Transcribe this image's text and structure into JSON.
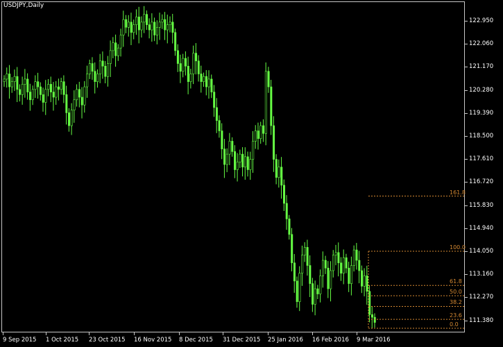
{
  "window": {
    "title": "USDJPY,Daily"
  },
  "colors": {
    "background": "#000000",
    "candle": "#66ff44",
    "fibonacci": "#d68a32",
    "axis": "#c8c8c8",
    "text": "#ffffff"
  },
  "y_axis": {
    "labels": [
      "122.950",
      "122.060",
      "121.170",
      "120.280",
      "119.390",
      "118.500",
      "117.610",
      "116.720",
      "115.830",
      "114.940",
      "114.050",
      "113.160",
      "112.270",
      "111.380"
    ]
  },
  "x_axis": {
    "labels": [
      "9 Sep 2015",
      "1 Oct 2015",
      "23 Oct 2015",
      "16 Nov 2015",
      "8 Dec 2015",
      "31 Dec 2015",
      "25 Jan 2016",
      "16 Feb 2016",
      "9 Mar 2016"
    ]
  },
  "fibonacci": {
    "levels": [
      "161.8",
      "100.0",
      "61.8",
      "50.0",
      "38.2",
      "23.6",
      "0.0"
    ]
  },
  "chart_data": {
    "type": "candlestick",
    "symbol": "USDJPY",
    "timeframe": "Daily",
    "ylim": [
      111.0,
      123.5
    ],
    "series": [
      {
        "name": "USDJPY",
        "close": [
          120.7,
          120.9,
          120.4,
          120.6,
          120.8,
          120.3,
          120.1,
          120.5,
          120.7,
          120.2,
          119.9,
          120.3,
          120.6,
          120.4,
          120.1,
          119.8,
          120.3,
          120.5,
          120.2,
          120.0,
          120.4,
          120.3,
          120.6,
          120.1,
          119.4,
          118.9,
          119.5,
          119.9,
          120.3,
          120.0,
          119.7,
          120.4,
          120.9,
          121.3,
          121.0,
          120.6,
          120.9,
          121.4,
          121.2,
          120.8,
          121.3,
          121.8,
          122.1,
          121.6,
          121.9,
          122.4,
          123.0,
          122.7,
          122.9,
          122.5,
          122.8,
          123.1,
          122.6,
          122.9,
          123.2,
          122.8,
          122.6,
          122.9,
          122.4,
          122.7,
          122.9,
          123.0,
          122.6,
          122.8,
          122.9,
          122.5,
          121.8,
          121.3,
          121.0,
          121.5,
          121.2,
          120.6,
          120.9,
          121.7,
          121.4,
          120.9,
          120.6,
          120.8,
          120.4,
          120.7,
          120.2,
          119.6,
          119.1,
          118.7,
          118.0,
          117.4,
          117.8,
          118.3,
          117.9,
          117.2,
          117.5,
          117.8,
          117.3,
          117.7,
          117.2,
          117.6,
          118.3,
          118.7,
          118.4,
          118.9,
          118.6,
          121.0,
          120.4,
          118.9,
          117.6,
          116.9,
          117.3,
          116.6,
          115.9,
          115.3,
          114.7,
          113.6,
          112.9,
          112.1,
          113.2,
          113.9,
          114.2,
          113.5,
          112.8,
          112.0,
          112.6,
          112.4,
          113.1,
          113.7,
          113.4,
          112.6,
          113.3,
          113.9,
          114.0,
          113.6,
          113.2,
          113.8,
          113.4,
          112.8,
          113.5,
          114.1,
          113.7,
          113.3,
          112.7,
          113.1,
          112.5,
          111.6,
          111.5,
          111.3
        ]
      }
    ],
    "fibonacci_levels": [
      {
        "ratio": "161.8",
        "price": 116.18
      },
      {
        "ratio": "100.0",
        "price": 114.05
      },
      {
        "ratio": "61.8",
        "price": 112.73
      },
      {
        "ratio": "50.0",
        "price": 112.33
      },
      {
        "ratio": "38.2",
        "price": 111.92
      },
      {
        "ratio": "23.6",
        "price": 111.42
      },
      {
        "ratio": "0.0",
        "price": 110.6
      }
    ]
  }
}
